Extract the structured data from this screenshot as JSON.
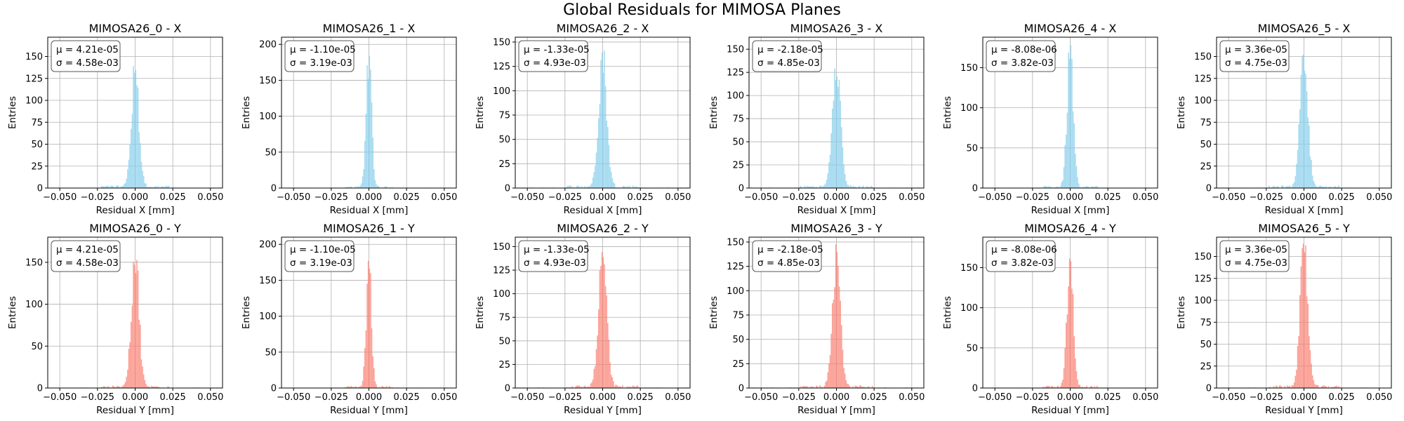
{
  "figure": {
    "title": "Global Residuals for MIMOSA Planes"
  },
  "chart_data": [
    {
      "type": "bar",
      "title": "MIMOSA26_0 - X",
      "xlabel": "Residual X [mm]",
      "ylabel": "Entries",
      "xlim": [
        -0.058,
        0.058
      ],
      "ylim": [
        0,
        172
      ],
      "xticks": [
        -0.05,
        -0.025,
        0,
        0.025,
        0.05
      ],
      "xtick_labels": [
        "−0.050",
        "−0.025",
        "0.000",
        "0.025",
        "0.050"
      ],
      "yticks": [
        0,
        25,
        50,
        75,
        100,
        125,
        150
      ],
      "stats": {
        "mean": "μ = 4.21e-05",
        "sigma": "σ = 4.58e-03"
      },
      "peak": 140,
      "mu": 4e-05,
      "sigma": 0.0046,
      "grid": true,
      "color": "#87CEEB"
    },
    {
      "type": "bar",
      "title": "MIMOSA26_1 - X",
      "xlabel": "Residual X [mm]",
      "ylabel": "Entries",
      "xlim": [
        -0.058,
        0.058
      ],
      "ylim": [
        0,
        210
      ],
      "xticks": [
        -0.05,
        -0.025,
        0,
        0.025,
        0.05
      ],
      "xtick_labels": [
        "−0.050",
        "−0.025",
        "0.000",
        "0.025",
        "0.050"
      ],
      "yticks": [
        0,
        50,
        100,
        150,
        200
      ],
      "stats": {
        "mean": "μ = -1.10e-05",
        "sigma": "σ = 3.19e-03"
      },
      "peak": 200,
      "mu": -1e-05,
      "sigma": 0.0032,
      "grid": true,
      "color": "#87CEEB"
    },
    {
      "type": "bar",
      "title": "MIMOSA26_2 - X",
      "xlabel": "Residual X [mm]",
      "ylabel": "Entries",
      "xlim": [
        -0.058,
        0.058
      ],
      "ylim": [
        0,
        155
      ],
      "xticks": [
        -0.05,
        -0.025,
        0,
        0.025,
        0.05
      ],
      "xtick_labels": [
        "−0.050",
        "−0.025",
        "0.000",
        "0.025",
        "0.050"
      ],
      "yticks": [
        0,
        25,
        50,
        75,
        100,
        125,
        150
      ],
      "stats": {
        "mean": "μ = -1.33e-05",
        "sigma": "σ = 4.93e-03"
      },
      "peak": 145,
      "mu": -1e-05,
      "sigma": 0.0049,
      "grid": true,
      "color": "#87CEEB"
    },
    {
      "type": "bar",
      "title": "MIMOSA26_3 - X",
      "xlabel": "Residual X [mm]",
      "ylabel": "Entries",
      "xlim": [
        -0.058,
        0.058
      ],
      "ylim": [
        0,
        163
      ],
      "xticks": [
        -0.05,
        -0.025,
        0,
        0.025,
        0.05
      ],
      "xtick_labels": [
        "−0.050",
        "−0.025",
        "0.000",
        "0.025",
        "0.050"
      ],
      "yticks": [
        0,
        25,
        50,
        75,
        100,
        125,
        150
      ],
      "stats": {
        "mean": "μ = -2.18e-05",
        "sigma": "σ = 4.85e-03"
      },
      "peak": 155,
      "mu": -2e-05,
      "sigma": 0.0048,
      "grid": true,
      "color": "#87CEEB"
    },
    {
      "type": "bar",
      "title": "MIMOSA26_4 - X",
      "xlabel": "Residual X [mm]",
      "ylabel": "Entries",
      "xlim": [
        -0.058,
        0.058
      ],
      "ylim": [
        0,
        188
      ],
      "xticks": [
        -0.05,
        -0.025,
        0,
        0.025,
        0.05
      ],
      "xtick_labels": [
        "−0.050",
        "−0.025",
        "0.000",
        "0.025",
        "0.050"
      ],
      "yticks": [
        0,
        50,
        100,
        150
      ],
      "stats": {
        "mean": "μ = -8.08e-06",
        "sigma": "σ = 3.82e-03"
      },
      "peak": 180,
      "mu": -1e-05,
      "sigma": 0.0038,
      "grid": true,
      "color": "#87CEEB"
    },
    {
      "type": "bar",
      "title": "MIMOSA26_5 - X",
      "xlabel": "Residual X [mm]",
      "ylabel": "Entries",
      "xlim": [
        -0.058,
        0.058
      ],
      "ylim": [
        0,
        172
      ],
      "xticks": [
        -0.05,
        -0.025,
        0,
        0.025,
        0.05
      ],
      "xtick_labels": [
        "−0.050",
        "−0.025",
        "0.000",
        "0.025",
        "0.050"
      ],
      "yticks": [
        0,
        25,
        50,
        75,
        100,
        125,
        150
      ],
      "stats": {
        "mean": "μ = 3.36e-05",
        "sigma": "σ = 4.75e-03"
      },
      "peak": 165,
      "mu": 3e-05,
      "sigma": 0.0047,
      "grid": true,
      "color": "#87CEEB"
    },
    {
      "type": "bar",
      "title": "MIMOSA26_0 - Y",
      "xlabel": "Residual Y [mm]",
      "ylabel": "Entries",
      "xlim": [
        -0.058,
        0.058
      ],
      "ylim": [
        0,
        180
      ],
      "xticks": [
        -0.05,
        -0.025,
        0,
        0.025,
        0.05
      ],
      "xtick_labels": [
        "−0.050",
        "−0.025",
        "0.000",
        "0.025",
        "0.050"
      ],
      "yticks": [
        0,
        50,
        100,
        150
      ],
      "stats": {
        "mean": "μ = 4.21e-05",
        "sigma": "σ = 4.58e-03"
      },
      "peak": 170,
      "mu": 4e-05,
      "sigma": 0.0046,
      "grid": true,
      "color": "#FA8072"
    },
    {
      "type": "bar",
      "title": "MIMOSA26_1 - Y",
      "xlabel": "Residual Y [mm]",
      "ylabel": "Entries",
      "xlim": [
        -0.058,
        0.058
      ],
      "ylim": [
        0,
        210
      ],
      "xticks": [
        -0.05,
        -0.025,
        0,
        0.025,
        0.05
      ],
      "xtick_labels": [
        "−0.050",
        "−0.025",
        "0.000",
        "0.025",
        "0.050"
      ],
      "yticks": [
        0,
        50,
        100,
        150,
        200
      ],
      "stats": {
        "mean": "μ = -1.10e-05",
        "sigma": "σ = 3.19e-03"
      },
      "peak": 180,
      "mu": -1e-05,
      "sigma": 0.0032,
      "grid": true,
      "color": "#FA8072"
    },
    {
      "type": "bar",
      "title": "MIMOSA26_2 - Y",
      "xlabel": "Residual Y [mm]",
      "ylabel": "Entries",
      "xlim": [
        -0.058,
        0.058
      ],
      "ylim": [
        0,
        160
      ],
      "xticks": [
        -0.05,
        -0.025,
        0,
        0.025,
        0.05
      ],
      "xtick_labels": [
        "−0.050",
        "−0.025",
        "0.000",
        "0.025",
        "0.050"
      ],
      "yticks": [
        0,
        25,
        50,
        75,
        100,
        125,
        150
      ],
      "stats": {
        "mean": "μ = -1.33e-05",
        "sigma": "σ = 4.93e-03"
      },
      "peak": 152,
      "mu": -1e-05,
      "sigma": 0.0049,
      "grid": true,
      "color": "#FA8072"
    },
    {
      "type": "bar",
      "title": "MIMOSA26_3 - Y",
      "xlabel": "Residual Y [mm]",
      "ylabel": "Entries",
      "xlim": [
        -0.058,
        0.058
      ],
      "ylim": [
        0,
        155
      ],
      "xticks": [
        -0.05,
        -0.025,
        0,
        0.025,
        0.05
      ],
      "xtick_labels": [
        "−0.050",
        "−0.025",
        "0.000",
        "0.025",
        "0.050"
      ],
      "yticks": [
        0,
        25,
        50,
        75,
        100,
        125,
        150
      ],
      "stats": {
        "mean": "μ = -2.18e-05",
        "sigma": "σ = 4.85e-03"
      },
      "peak": 148,
      "mu": -2e-05,
      "sigma": 0.0048,
      "grid": true,
      "color": "#FA8072"
    },
    {
      "type": "bar",
      "title": "MIMOSA26_4 - Y",
      "xlabel": "Residual Y [mm]",
      "ylabel": "Entries",
      "xlim": [
        -0.058,
        0.058
      ],
      "ylim": [
        0,
        188
      ],
      "xticks": [
        -0.05,
        -0.025,
        0,
        0.025,
        0.05
      ],
      "xtick_labels": [
        "−0.050",
        "−0.025",
        "0.000",
        "0.025",
        "0.050"
      ],
      "yticks": [
        0,
        50,
        100,
        150
      ],
      "stats": {
        "mean": "μ = -8.08e-06",
        "sigma": "σ = 3.82e-03"
      },
      "peak": 168,
      "mu": -1e-05,
      "sigma": 0.0038,
      "grid": true,
      "color": "#FA8072"
    },
    {
      "type": "bar",
      "title": "MIMOSA26_5 - Y",
      "xlabel": "Residual Y [mm]",
      "ylabel": "Entries",
      "xlim": [
        -0.058,
        0.058
      ],
      "ylim": [
        0,
        172
      ],
      "xticks": [
        -0.05,
        -0.025,
        0,
        0.025,
        0.05
      ],
      "xtick_labels": [
        "−0.050",
        "−0.025",
        "0.000",
        "0.025",
        "0.050"
      ],
      "yticks": [
        0,
        25,
        50,
        75,
        100,
        125,
        150
      ],
      "stats": {
        "mean": "μ = 3.36e-05",
        "sigma": "σ = 4.75e-03"
      },
      "peak": 165,
      "mu": 3e-05,
      "sigma": 0.0047,
      "grid": true,
      "color": "#FA8072"
    }
  ]
}
